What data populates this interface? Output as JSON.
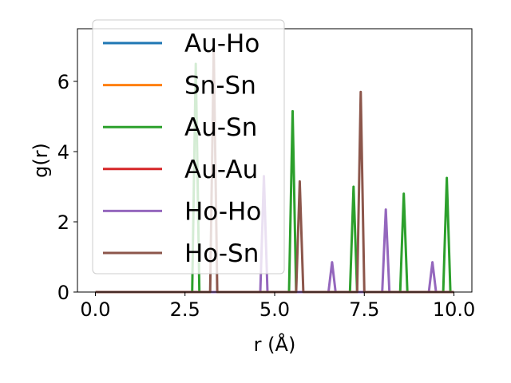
{
  "chart_data": {
    "type": "line",
    "xlabel": "r (Å)",
    "ylabel": "g(r)",
    "xlim": [
      -0.5,
      10.5
    ],
    "ylim": [
      0,
      7.5
    ],
    "xticks": [
      0.0,
      2.5,
      5.0,
      7.5,
      10.0
    ],
    "xtick_labels": [
      "0.0",
      "2.5",
      "5.0",
      "7.5",
      "10.0"
    ],
    "yticks": [
      0,
      2,
      4,
      6
    ],
    "ytick_labels": [
      "0",
      "2",
      "4",
      "6"
    ],
    "grid": false,
    "legend_position": "upper-left",
    "series": [
      {
        "name": "Au-Ho",
        "color": "#1f77b4",
        "peaks": []
      },
      {
        "name": "Sn-Sn",
        "color": "#ff7f0e",
        "peaks": []
      },
      {
        "name": "Au-Sn",
        "color": "#2ca02c",
        "peaks": [
          [
            2.8,
            6.5
          ],
          [
            5.5,
            5.15
          ],
          [
            7.2,
            3.0
          ],
          [
            8.6,
            2.8
          ],
          [
            9.8,
            3.25
          ]
        ]
      },
      {
        "name": "Au-Au",
        "color": "#d62728",
        "peaks": []
      },
      {
        "name": "Ho-Ho",
        "color": "#9467bd",
        "peaks": [
          [
            4.7,
            3.3
          ],
          [
            6.6,
            0.85
          ],
          [
            8.1,
            2.35
          ],
          [
            9.4,
            0.85
          ]
        ]
      },
      {
        "name": "Ho-Sn",
        "color": "#8c564b",
        "peaks": [
          [
            3.3,
            6.9
          ],
          [
            5.7,
            3.15
          ],
          [
            7.4,
            5.7
          ]
        ]
      }
    ]
  }
}
